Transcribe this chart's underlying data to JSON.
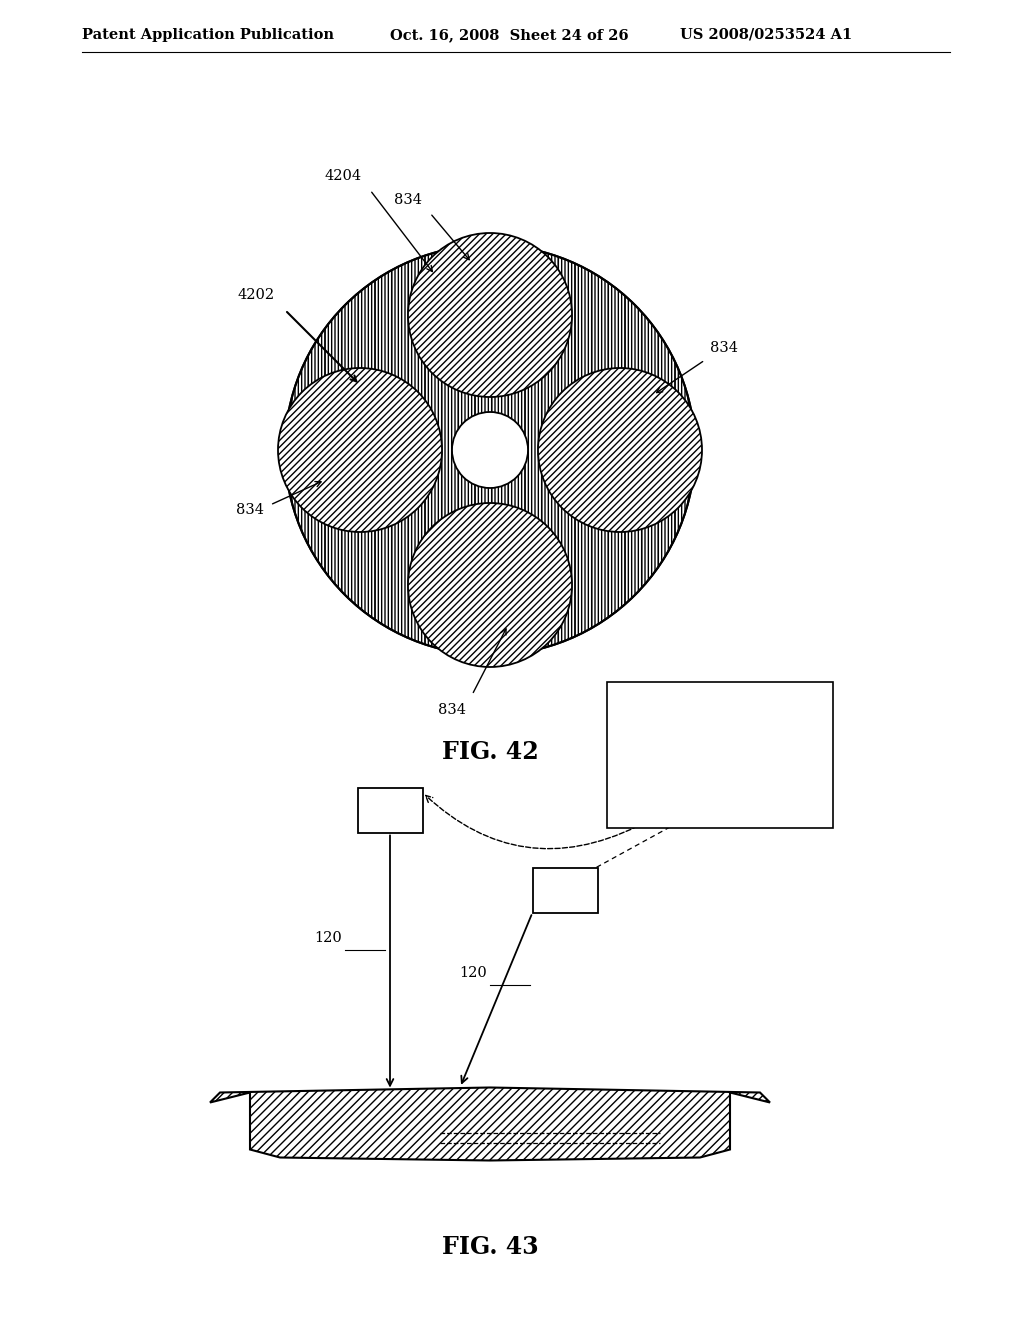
{
  "header_left": "Patent Application Publication",
  "header_mid": "Oct. 16, 2008  Sheet 24 of 26",
  "header_right": "US 2008/0253524 A1",
  "fig42_label": "FIG. 42",
  "fig43_label": "FIG. 43",
  "bg_color": "#ffffff"
}
